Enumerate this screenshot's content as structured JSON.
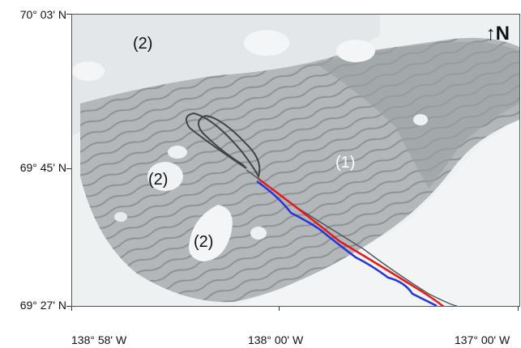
{
  "axes": {
    "lat_labels": [
      "70° 03' N",
      "69° 45' N",
      "69° 27' N"
    ],
    "lon_labels": [
      "138° 58' W",
      "138° 00' W",
      "137° 00' W"
    ]
  },
  "annotations": {
    "region_labels": [
      "(2)",
      "(2)",
      "(2)",
      "(1)"
    ]
  },
  "north_arrow": {
    "text": "↑N"
  },
  "colors": {
    "ice_light": "#eef1f2",
    "water_dark": "#9fa3a6",
    "water_mid": "#b9bcbf",
    "track_red": "#e21b1b",
    "track_blue": "#2437d6",
    "track_grey": "#444444"
  }
}
